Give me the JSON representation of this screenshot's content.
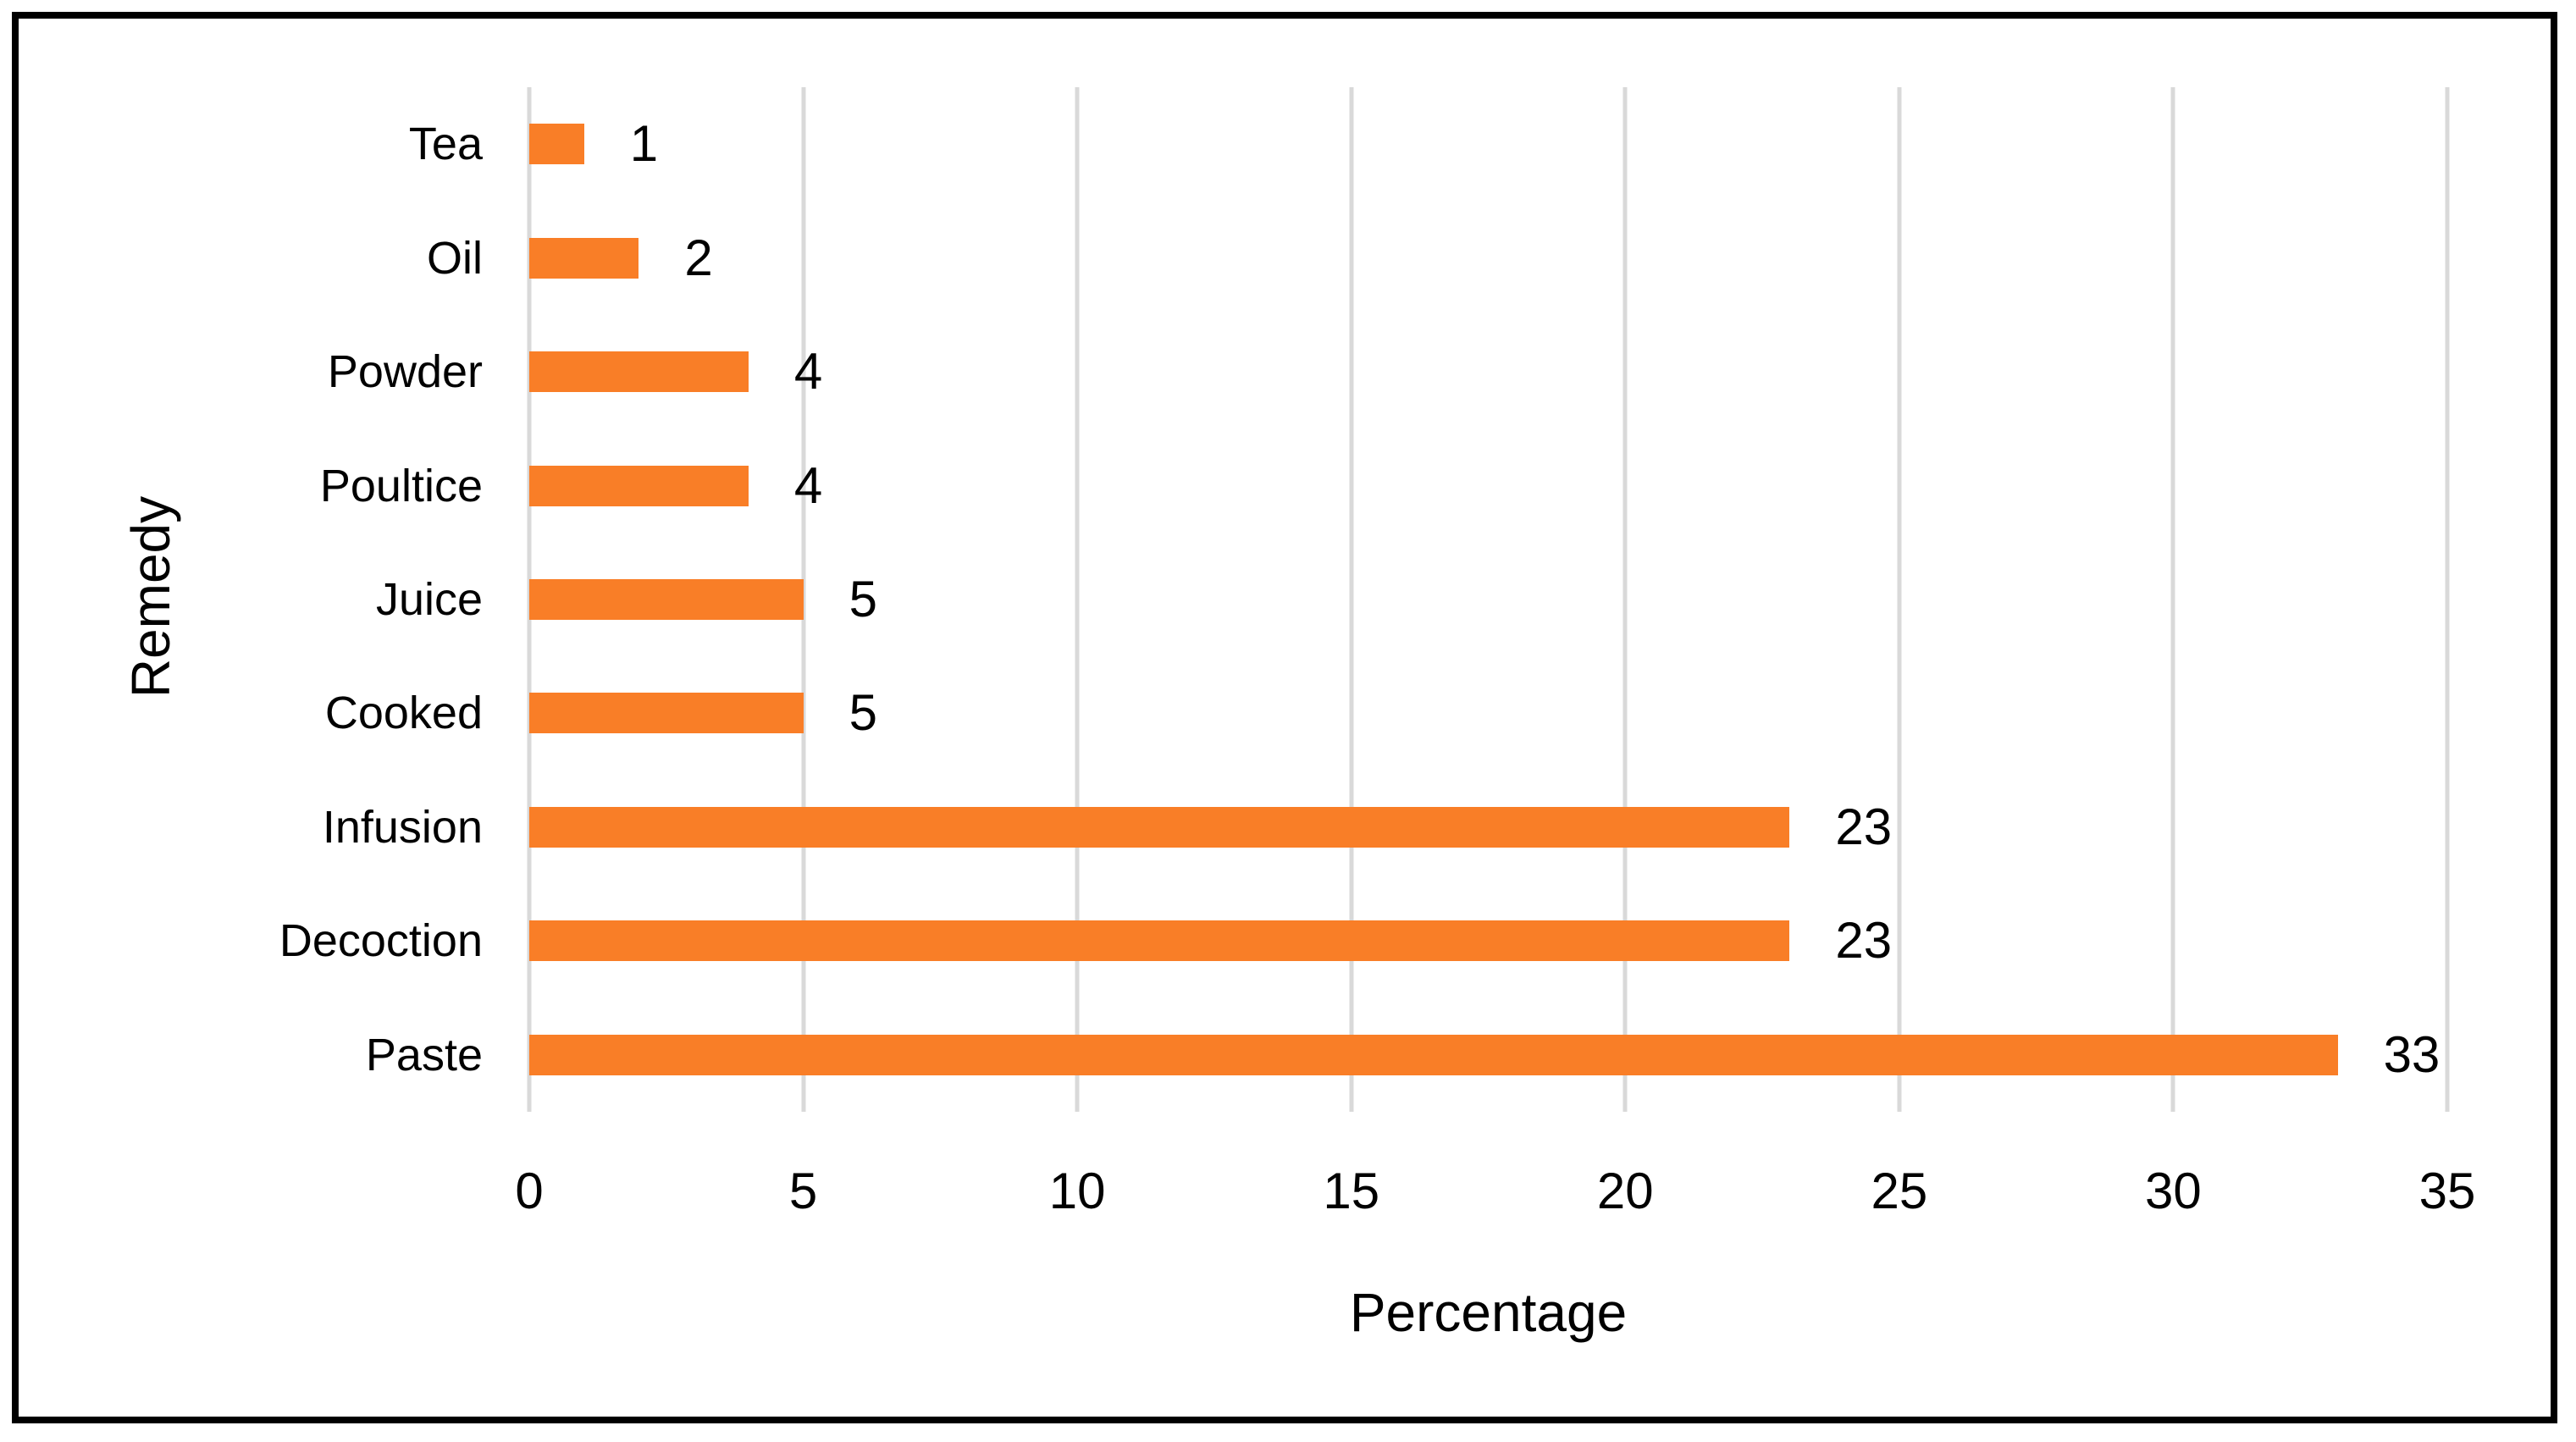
{
  "chart_data": {
    "type": "bar",
    "orientation": "horizontal",
    "title": "",
    "categories": [
      "Tea",
      "Oil",
      "Powder",
      "Poultice",
      "Juice",
      "Cooked",
      "Infusion",
      "Decoction",
      "Paste"
    ],
    "values": [
      1,
      2,
      4,
      4,
      5,
      5,
      23,
      23,
      33
    ],
    "data_labels": [
      "1",
      "2",
      "4",
      "4",
      "5",
      "5",
      "23",
      "23",
      "33"
    ],
    "xlabel": "Percentage",
    "ylabel": "Remedy",
    "xlim": [
      0,
      35
    ],
    "xticks": [
      0,
      5,
      10,
      15,
      20,
      25,
      30,
      35
    ],
    "grid": "vertical",
    "legend": "none",
    "colors": {
      "bar": "#F97E27",
      "gridline": "#D9D9D9",
      "text": "#000000",
      "frame_border": "#000000",
      "background": "#FFFFFF"
    }
  }
}
